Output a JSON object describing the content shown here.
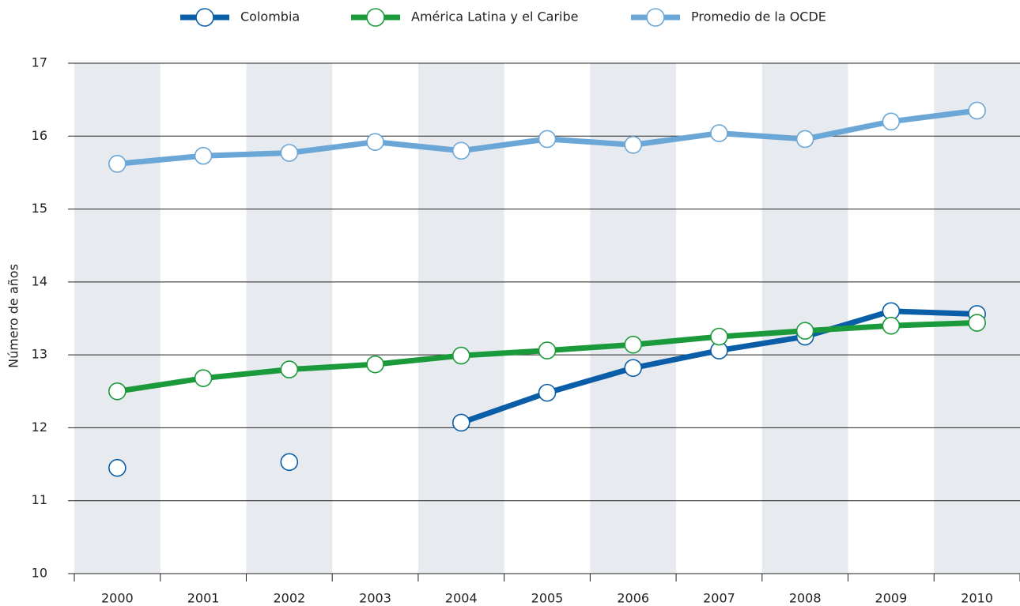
{
  "chart_data": {
    "type": "line",
    "y_label": "Número de años",
    "categories": [
      "2000",
      "2001",
      "2002",
      "2003",
      "2004",
      "2005",
      "2006",
      "2007",
      "2008",
      "2009",
      "2010"
    ],
    "series": [
      {
        "name": "Colombia",
        "color": "#0a5ea8",
        "values": [
          11.45,
          null,
          11.53,
          null,
          12.07,
          12.48,
          12.82,
          13.06,
          13.25,
          13.6,
          13.56
        ]
      },
      {
        "name": "América Latina y el Caribe",
        "color": "#1a9a3a",
        "values": [
          12.5,
          12.68,
          12.8,
          12.87,
          12.99,
          13.06,
          13.14,
          13.25,
          13.33,
          13.4,
          13.44
        ]
      },
      {
        "name": "Promedio de la OCDE",
        "color": "#6aa6d6",
        "values": [
          15.62,
          15.73,
          15.77,
          15.92,
          15.8,
          15.96,
          15.88,
          16.04,
          15.96,
          16.2,
          16.35
        ]
      }
    ],
    "ylim": [
      10,
      17
    ],
    "yticks": [
      10,
      11,
      12,
      13,
      14,
      15,
      16,
      17
    ],
    "grid": true,
    "legend": "top"
  }
}
